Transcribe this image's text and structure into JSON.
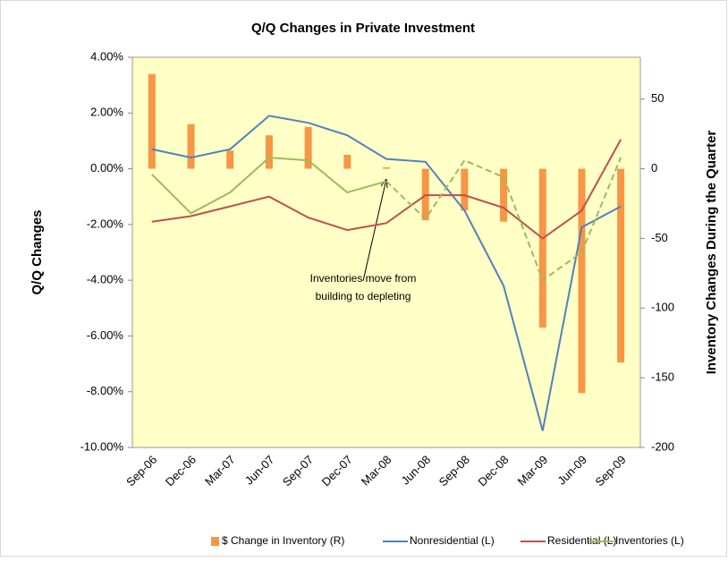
{
  "chart_data": {
    "type": "combo",
    "title": "Q/Q Changes in Private Investment",
    "y_label": "Q/Q  Changes",
    "y2_label": "Inventory Changes During the Quarter",
    "categories": [
      "Sep-06",
      "Dec-06",
      "Mar-07",
      "Jun-07",
      "Sep-07",
      "Dec-07",
      "Mar-08",
      "Jun-08",
      "Sep-08",
      "Dec-08",
      "Mar-09",
      "Jun-09",
      "Sep-09"
    ],
    "series": [
      {
        "name": "$ Change in Inventory (R)",
        "kind": "bar",
        "axis": "y2",
        "color": "#F79646",
        "values": [
          68,
          32,
          13,
          24,
          30,
          10,
          1,
          -37,
          -30,
          -38,
          -114,
          -161,
          -139
        ]
      },
      {
        "name": "Nonresidential (L)",
        "kind": "line",
        "color": "#4F81BD",
        "values": [
          0.7,
          0.4,
          0.7,
          1.9,
          1.65,
          1.2,
          0.35,
          0.25,
          -1.5,
          -4.2,
          -9.4,
          -2.1,
          -1.35
        ]
      },
      {
        "name": "Residential (L)",
        "kind": "line",
        "color": "#C0504D",
        "values": [
          -1.9,
          -1.7,
          -1.35,
          -1.0,
          -1.75,
          -2.2,
          -1.95,
          -0.95,
          -0.95,
          -1.4,
          -2.5,
          -1.5,
          1.05
        ]
      },
      {
        "name": "Inventories (L)",
        "kind": "line",
        "color": "#9BBB59",
        "dash_from": "Mar-08",
        "values": [
          -0.2,
          -1.6,
          -0.85,
          0.4,
          0.3,
          -0.85,
          -0.45,
          -1.8,
          0.3,
          -0.3,
          -4.0,
          -3.0,
          0.4
        ]
      }
    ],
    "ylim": [
      -10,
      4
    ],
    "yticks": [
      {
        "value": -10,
        "label": "-10.00%"
      },
      {
        "value": -8,
        "label": "-8.00%"
      },
      {
        "value": -6,
        "label": "-6.00%"
      },
      {
        "value": -4,
        "label": "-4.00%"
      },
      {
        "value": -2,
        "label": "-2.00%"
      },
      {
        "value": 0,
        "label": "0.00%"
      },
      {
        "value": 2,
        "label": "2.00%"
      },
      {
        "value": 4,
        "label": "4.00%"
      }
    ],
    "y2lim": [
      -200,
      80
    ],
    "y2ticks": [
      -200,
      -150,
      -100,
      -50,
      0,
      50
    ],
    "annotation": [
      "Inventories move from",
      "building to depleting"
    ],
    "legend": "bottom"
  }
}
